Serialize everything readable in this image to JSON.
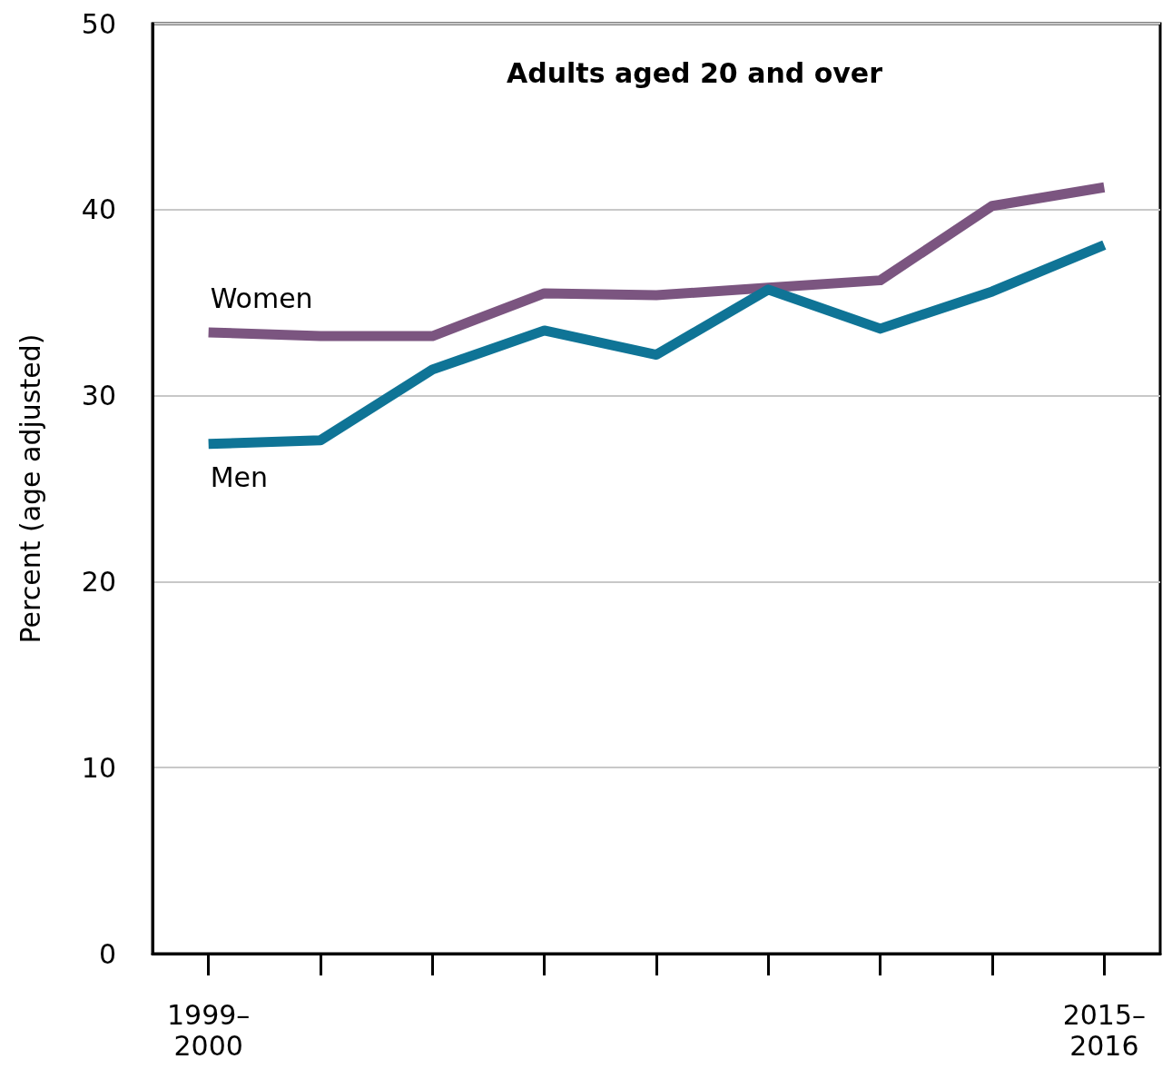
{
  "chart_data": {
    "type": "line",
    "title": "Adults aged 20 and over",
    "ylabel": "Percent (age adjusted)",
    "categories": [
      "1999–\n2000",
      null,
      null,
      null,
      null,
      null,
      null,
      null,
      "2015–\n2016"
    ],
    "series": [
      {
        "name": "Women",
        "color": "#7b5580",
        "values": [
          33.4,
          33.2,
          33.2,
          35.5,
          35.4,
          35.8,
          36.2,
          40.2,
          41.2
        ]
      },
      {
        "name": "Men",
        "color": "#0f7496",
        "values": [
          27.4,
          27.6,
          31.4,
          33.5,
          32.2,
          35.7,
          33.6,
          35.6,
          38.1
        ]
      }
    ],
    "ylim": [
      0,
      50
    ],
    "yticks": [
      0,
      10,
      20,
      30,
      40,
      50
    ],
    "grid": "y",
    "legend": false,
    "marker": "none",
    "line_style": "solid"
  }
}
